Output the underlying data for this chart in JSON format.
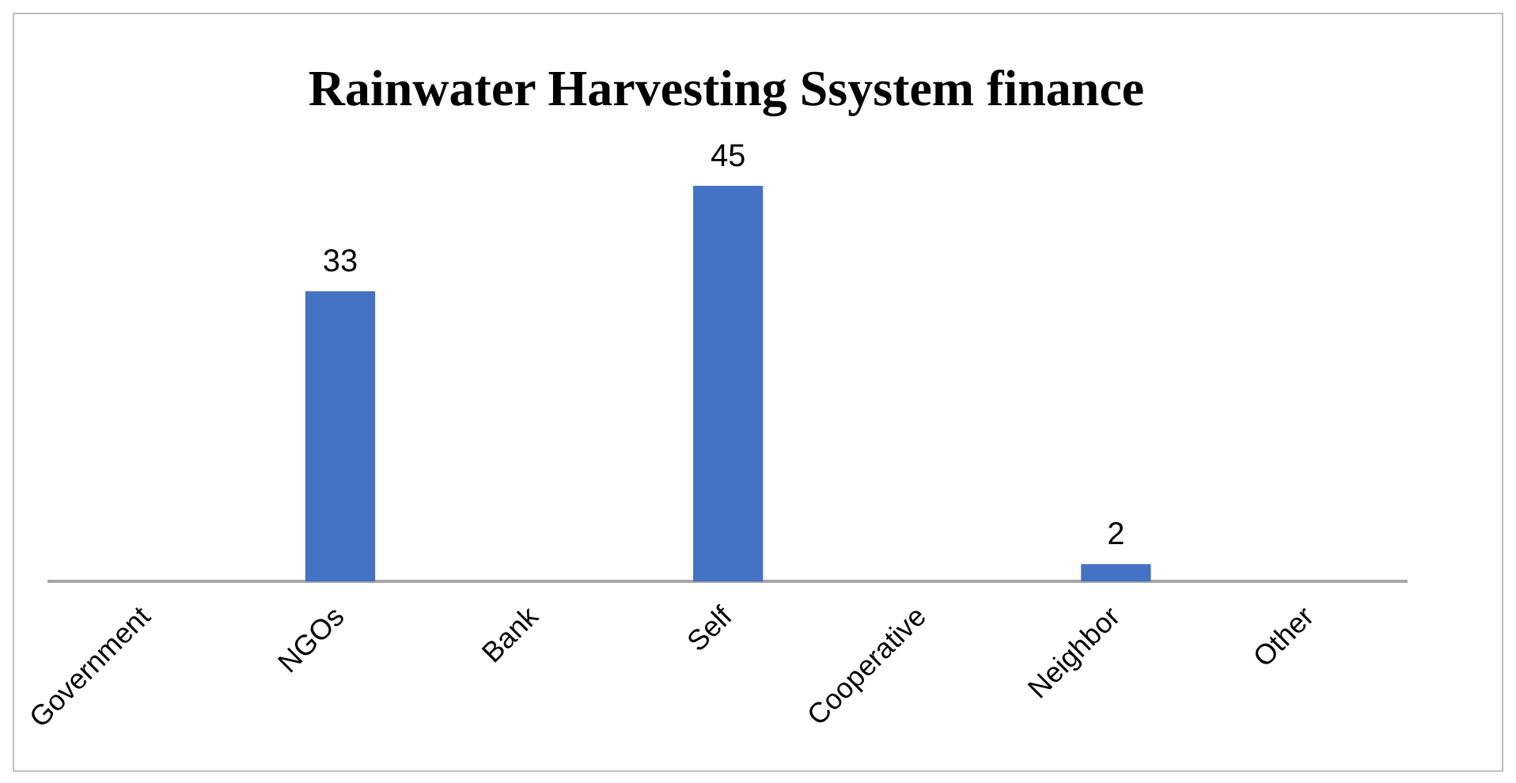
{
  "chart_data": {
    "type": "bar",
    "title": "Rainwater Harvesting Ssystem finance",
    "categories": [
      "Government",
      "NGOs",
      "Bank",
      "Self",
      "Cooperative",
      "Neighbor",
      "Other"
    ],
    "values": [
      0,
      33,
      0,
      45,
      0,
      2,
      0
    ],
    "value_labels": [
      null,
      "33",
      null,
      "45",
      null,
      "2",
      null
    ],
    "color": "#4472c4",
    "grid": false,
    "legend": false
  }
}
